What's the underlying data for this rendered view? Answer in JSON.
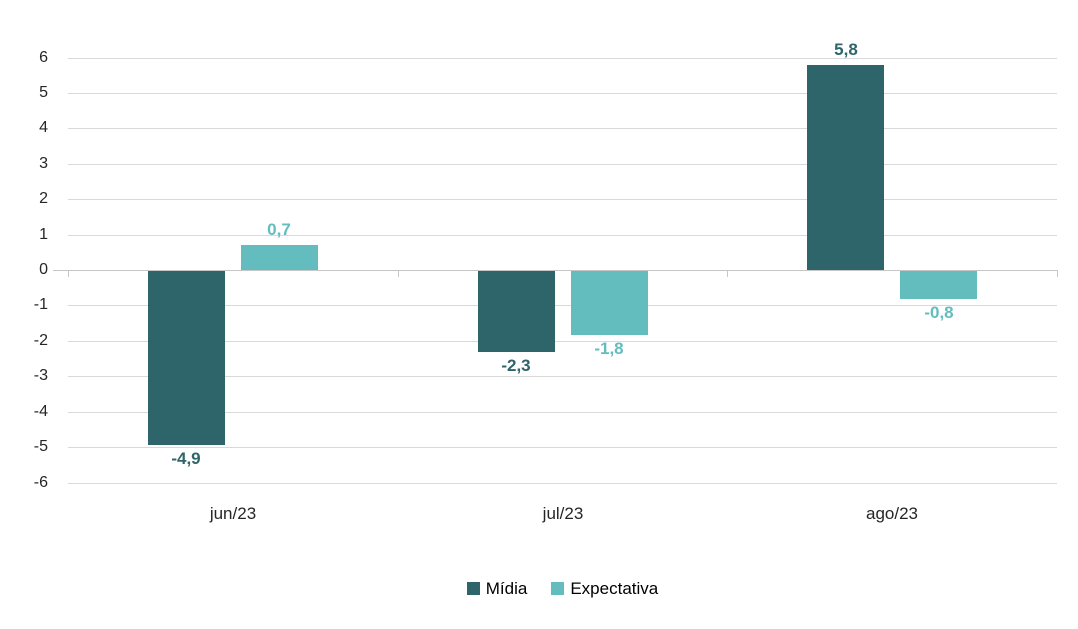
{
  "chart_data": {
    "type": "bar",
    "categories": [
      "jun/23",
      "jul/23",
      "ago/23"
    ],
    "series": [
      {
        "name": "Mídia",
        "color": "#2E656A",
        "values": [
          -4.9,
          -2.3,
          5.8
        ],
        "value_labels": [
          "-4,9",
          "-2,3",
          "5,8"
        ]
      },
      {
        "name": "Expectativa",
        "color": "#63BDBF",
        "values": [
          0.7,
          -1.8,
          -0.8
        ],
        "value_labels": [
          "0,7",
          "-1,8",
          "-0,8"
        ]
      }
    ],
    "title": "",
    "xlabel": "",
    "ylabel": "",
    "ylim": [
      -6,
      6
    ],
    "ytick_step": 1,
    "ytick_labels": [
      "6",
      "5",
      "4",
      "3",
      "2",
      "1",
      "0",
      "-1",
      "-2",
      "-3",
      "-4",
      "-5",
      "-6"
    ],
    "grid": true,
    "gridline_color": "#D9D9D9",
    "axis_line_color": "#C6C6C6",
    "text_color": "#262626",
    "legend_position": "bottom"
  }
}
